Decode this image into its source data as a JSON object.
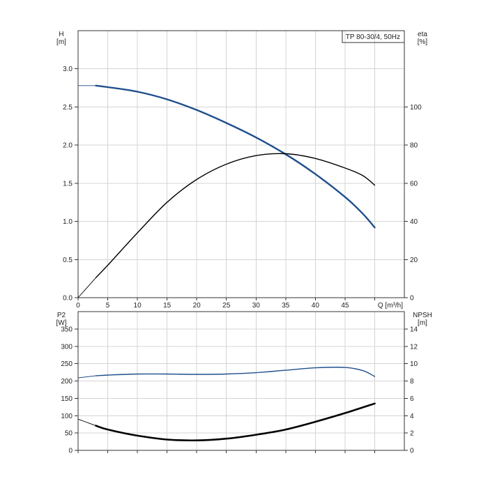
{
  "chart_data": [
    {
      "type": "line",
      "title": "TP 80-30/4, 50Hz",
      "xlabel": "Q [m³/h]",
      "ylabel": {
        "name": "H",
        "unit": "[m]"
      },
      "y2label": {
        "name": "eta",
        "unit": "[%]"
      },
      "xlim": [
        0,
        55
      ],
      "ylim": [
        0,
        3.5
      ],
      "y2lim": [
        0,
        140
      ],
      "x_ticks": [
        "0",
        "5",
        "10",
        "15",
        "20",
        "25",
        "30",
        "35",
        "40",
        "45"
      ],
      "y_ticks": [
        "0.0",
        "0.5",
        "1.0",
        "1.5",
        "2.0",
        "2.5",
        "3.0"
      ],
      "y2_ticks": [
        "0",
        "20",
        "40",
        "60",
        "80",
        "100"
      ],
      "grid": true,
      "series": [
        {
          "key": "h-curve",
          "axis": "left",
          "color": "#1f4e8c",
          "x": [
            0,
            3,
            5,
            10,
            15,
            20,
            25,
            30,
            35,
            40,
            45,
            48,
            50
          ],
          "y": [
            2.78,
            2.78,
            2.76,
            2.7,
            2.6,
            2.46,
            2.29,
            2.1,
            1.88,
            1.62,
            1.32,
            1.1,
            0.92
          ]
        },
        {
          "key": "eta-curve",
          "axis": "right",
          "color": "#000000",
          "x": [
            0,
            3,
            5,
            10,
            15,
            20,
            25,
            30,
            35,
            40,
            45,
            48,
            50
          ],
          "y": [
            0,
            10.5,
            17,
            34,
            50,
            62,
            70,
            74.5,
            75.5,
            73,
            68,
            64,
            59
          ]
        }
      ]
    },
    {
      "type": "line",
      "xlabel": "",
      "ylabel": {
        "name": "P2",
        "unit": "[W]"
      },
      "y2label": {
        "name": "NPSH",
        "unit": "[m]"
      },
      "xlim": [
        0,
        55
      ],
      "ylim": [
        0,
        400
      ],
      "y2lim": [
        0,
        16
      ],
      "y_ticks": [
        "0",
        "50",
        "100",
        "150",
        "200",
        "250",
        "300",
        "350"
      ],
      "y2_ticks": [
        "0",
        "2",
        "4",
        "6",
        "8",
        "10",
        "12",
        "14"
      ],
      "grid": true,
      "series": [
        {
          "key": "p2-curve",
          "axis": "left",
          "color": "#1f4e8c",
          "x": [
            0,
            3,
            5,
            10,
            15,
            20,
            25,
            30,
            35,
            40,
            45,
            48,
            50
          ],
          "y": [
            209,
            215,
            217,
            220,
            220,
            219,
            220,
            224,
            231,
            238,
            239,
            230,
            213
          ]
        },
        {
          "key": "npsh-curve",
          "axis": "right",
          "color": "#000000",
          "x": [
            0,
            3,
            5,
            10,
            15,
            20,
            25,
            30,
            35,
            40,
            45,
            50
          ],
          "y": [
            3.6,
            2.85,
            2.4,
            1.7,
            1.25,
            1.15,
            1.35,
            1.8,
            2.4,
            3.3,
            4.3,
            5.4
          ]
        }
      ]
    }
  ]
}
